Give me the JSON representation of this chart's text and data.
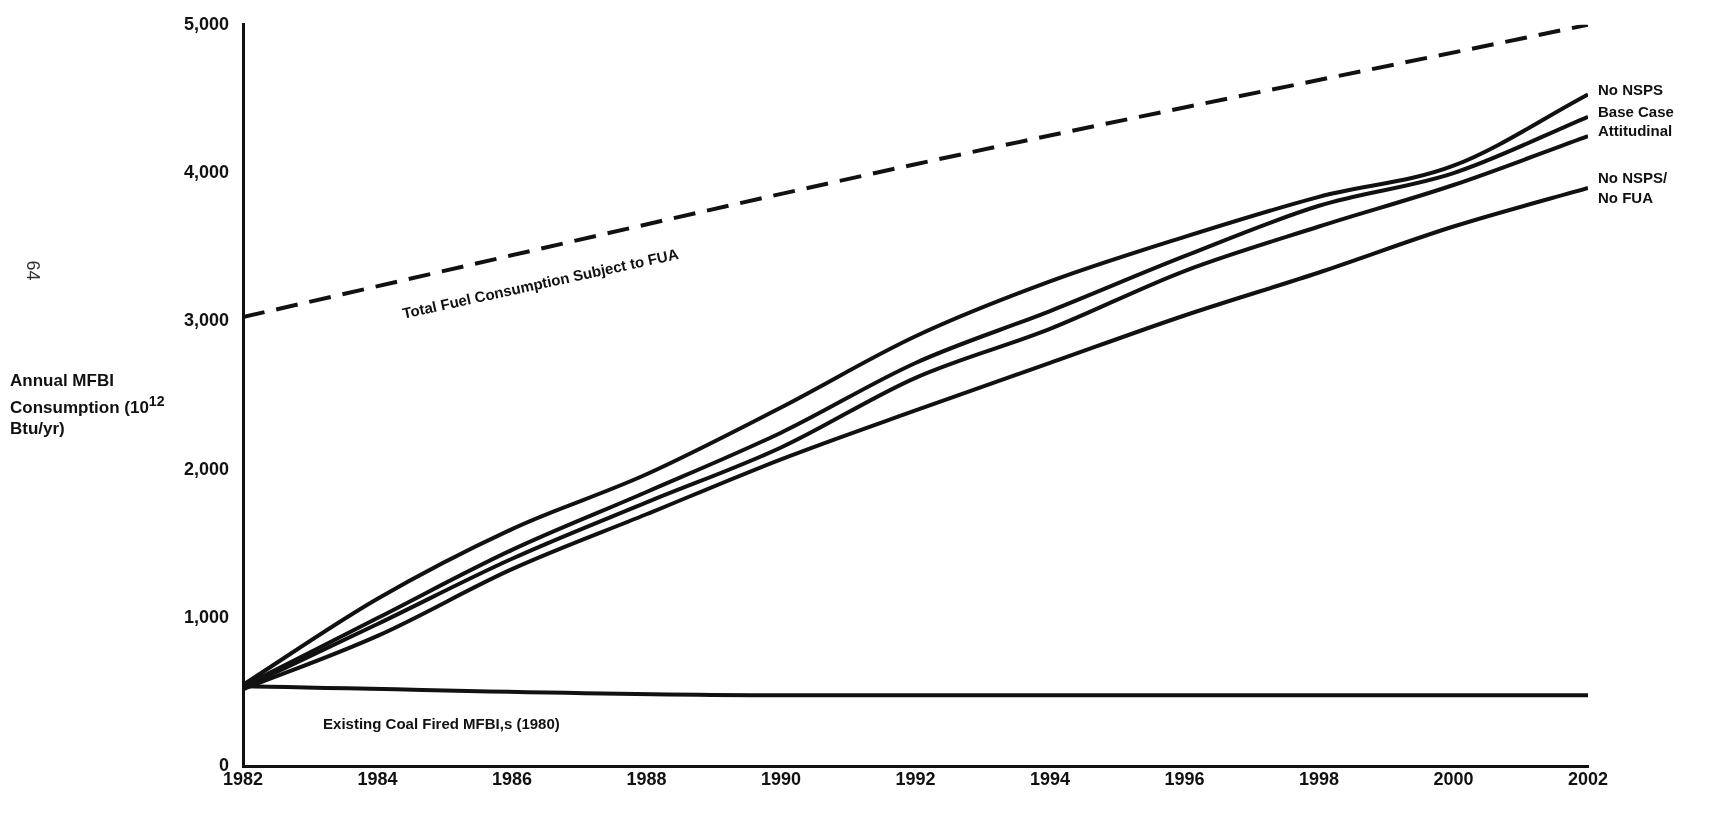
{
  "chart_data": {
    "type": "line",
    "ylabel": "Annual MFBI Consumption (10$^{12}$ Btu/yr)",
    "legend": false,
    "grid": false,
    "marker": "none",
    "xlim": [
      1982,
      2002
    ],
    "xticks": [
      1982,
      1984,
      1986,
      1988,
      1990,
      1992,
      1994,
      1996,
      1998,
      2000,
      2002
    ],
    "ylim": [
      0,
      5000
    ],
    "yticks": [
      0,
      {
        "value": 1000,
        "label": "1,000"
      },
      {
        "value": 2000,
        "label": "2,000"
      },
      {
        "value": 3000,
        "label": "3,000"
      },
      {
        "value": 4000,
        "label": "4,000"
      },
      {
        "value": 5000,
        "label": "5,000"
      }
    ],
    "annotations": [
      "64"
    ],
    "series": [
      {
        "name": "Total Fuel Consumption Subject to FUA",
        "color": "#111111",
        "line_style": "dashed",
        "x": [
          1982,
          1992,
          2002
        ],
        "values": [
          3030,
          4060,
          5000
        ]
      },
      {
        "name": "No NSPS",
        "color": "#111111",
        "line_style": "solid",
        "x": [
          1982,
          1984,
          1986,
          1988,
          1990,
          1992,
          1994,
          1996,
          1998,
          2000,
          2002
        ],
        "values": [
          550,
          1130,
          1600,
          1970,
          2420,
          2900,
          3270,
          3570,
          3840,
          4050,
          4530
        ]
      },
      {
        "name": "Base Case",
        "color": "#111111",
        "line_style": "solid",
        "x": [
          1982,
          1984,
          1986,
          1988,
          1990,
          1992,
          1994,
          1996,
          1998,
          2000,
          2002
        ],
        "values": [
          540,
          1000,
          1460,
          1850,
          2250,
          2720,
          3070,
          3440,
          3780,
          4000,
          4380
        ]
      },
      {
        "name": "Attitudinal",
        "color": "#111111",
        "line_style": "solid",
        "x": [
          1982,
          1984,
          1986,
          1988,
          1990,
          1992,
          1994,
          1996,
          1998,
          2000,
          2002
        ],
        "values": [
          530,
          960,
          1400,
          1780,
          2150,
          2620,
          2950,
          3340,
          3640,
          3920,
          4250
        ]
      },
      {
        "name": "No NSPS/ No FUA",
        "color": "#111111",
        "line_style": "solid",
        "x": [
          1982,
          1984,
          1986,
          1988,
          1990,
          1992,
          1994,
          1996,
          1998,
          2000,
          2002
        ],
        "values": [
          520,
          880,
          1330,
          1700,
          2070,
          2400,
          2720,
          3040,
          3330,
          3640,
          3900
        ]
      },
      {
        "name": "Existing Coal Fired MFBI,s (1980)",
        "color": "#111111",
        "line_style": "solid",
        "x": [
          1982,
          1990,
          2002
        ],
        "values": [
          540,
          480,
          480
        ]
      }
    ]
  }
}
